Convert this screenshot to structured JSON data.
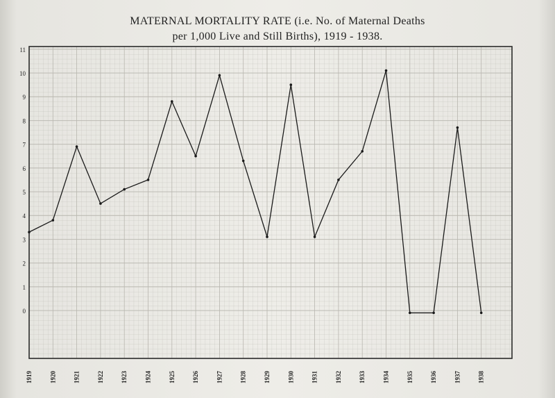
{
  "title_line1": "MATERNAL MORTALITY RATE (i.e. No. of Maternal Deaths",
  "title_line2": "per 1,000 Live and Still Births), 1919 - 1938.",
  "chart_data": {
    "type": "line",
    "title": "MATERNAL MORTALITY RATE (i.e. No. of Maternal Deaths per 1,000 Live and Still Births), 1919 - 1938.",
    "xlabel": "",
    "ylabel": "",
    "categories": [
      "1919",
      "1920",
      "1921",
      "1922",
      "1923",
      "1924",
      "1925",
      "1926",
      "1927",
      "1928",
      "1929",
      "1930",
      "1931",
      "1932",
      "1933",
      "1934",
      "1935",
      "1936",
      "1937",
      "1938"
    ],
    "values": [
      3.3,
      3.8,
      6.9,
      4.5,
      5.1,
      5.5,
      8.8,
      6.5,
      9.9,
      6.3,
      3.1,
      9.5,
      3.1,
      5.5,
      6.7,
      10.1,
      -0.1,
      -0.1,
      7.7,
      -0.1
    ],
    "yticks": [
      0,
      1,
      2,
      3,
      4,
      5,
      6,
      7,
      8,
      9,
      10,
      11
    ],
    "ylim": [
      -2,
      11
    ],
    "grid": true,
    "line_color": "#1a1a1a",
    "grid_color": "#b9b7b0"
  }
}
